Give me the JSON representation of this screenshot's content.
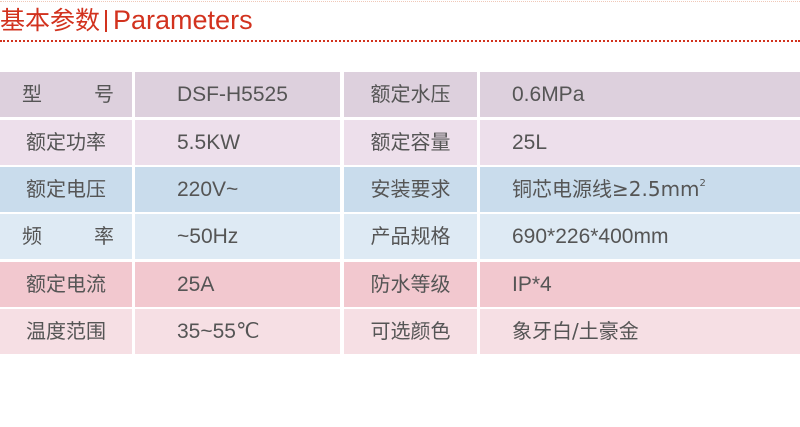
{
  "header": {
    "title_cn": "基本参数",
    "title_en": "Parameters"
  },
  "colors": {
    "accent": "#d2321e",
    "row_colors": [
      "#ddd0dd",
      "#eddfeb",
      "#c9dcec",
      "#deeaf4",
      "#f2c8cf",
      "#f6dfe4"
    ]
  },
  "rows": [
    {
      "label1": "型号",
      "value1": "DSF-H5525",
      "label2": "额定水压",
      "value2": "0.6MPa"
    },
    {
      "label1": "额定功率",
      "value1": "5.5KW",
      "label2": "额定容量",
      "value2": "25L"
    },
    {
      "label1": "额定电压",
      "value1": "220V~",
      "label2": "安装要求",
      "value2": "铜芯电源线≥2.5mm",
      "value2_sup": "2"
    },
    {
      "label1": "频率",
      "value1": "~50Hz",
      "label2": "产品规格",
      "value2": "690*226*400mm"
    },
    {
      "label1": "额定电流",
      "value1": "25A",
      "label2": "防水等级",
      "value2": "IP*4"
    },
    {
      "label1": "温度范围",
      "value1": "35~55℃",
      "label2": "可选颜色",
      "value2": "象牙白/土豪金"
    }
  ]
}
